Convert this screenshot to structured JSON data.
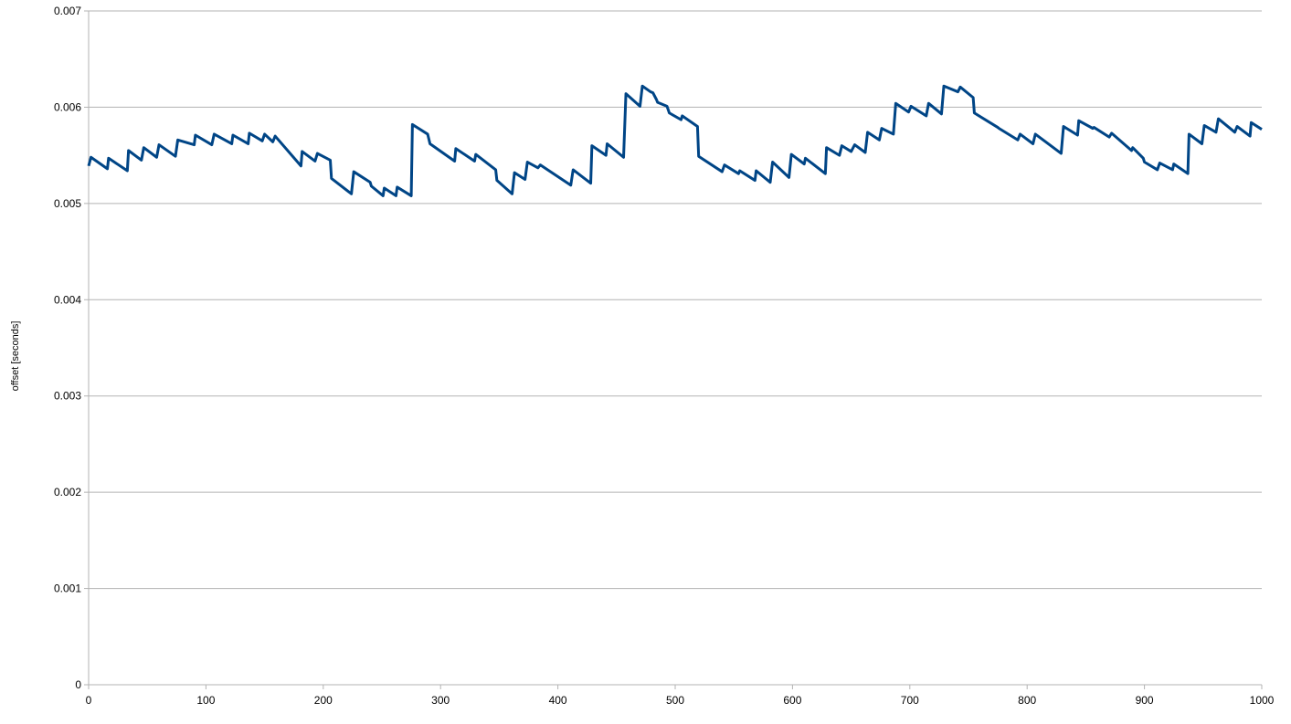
{
  "chart_data": {
    "type": "line",
    "y_label": "offset [seconds]",
    "x": [
      0,
      2,
      16,
      17,
      33,
      34,
      45,
      47,
      58,
      60,
      74,
      76,
      90,
      91,
      105,
      107,
      122,
      123,
      136,
      137,
      148,
      150,
      157,
      159,
      181,
      182,
      193,
      195,
      206,
      207,
      224,
      226,
      240,
      241,
      251,
      252,
      262,
      263,
      275,
      276,
      289,
      291,
      312,
      313,
      329,
      330,
      347,
      348,
      361,
      363,
      372,
      374,
      383,
      385,
      411,
      413,
      428,
      429,
      441,
      442,
      456,
      458,
      470,
      472,
      479,
      481,
      484,
      485,
      493,
      495,
      505,
      506,
      519,
      520,
      540,
      542,
      554,
      555,
      568,
      569,
      581,
      583,
      597,
      599,
      610,
      611,
      628,
      629,
      640,
      642,
      650,
      653,
      662,
      664,
      674,
      676,
      686,
      688,
      699,
      701,
      714,
      716,
      727,
      729,
      741,
      743,
      754,
      755,
      775,
      776,
      792,
      794,
      805,
      807,
      829,
      831,
      843,
      844,
      856,
      857,
      870,
      872,
      889,
      890,
      899,
      900,
      911,
      913,
      924,
      925,
      937,
      938,
      949,
      951,
      961,
      963,
      977,
      979,
      990,
      991,
      1000
    ],
    "series": [
      {
        "name": "offset",
        "color": "#004586",
        "values": [
          0.00539,
          0.00548,
          0.00536,
          0.00547,
          0.00534,
          0.00555,
          0.00545,
          0.00558,
          0.00548,
          0.00561,
          0.00549,
          0.00566,
          0.00561,
          0.00571,
          0.00561,
          0.00572,
          0.00562,
          0.00571,
          0.00562,
          0.00573,
          0.00565,
          0.00572,
          0.00564,
          0.0057,
          0.00539,
          0.00554,
          0.00544,
          0.00552,
          0.00545,
          0.00526,
          0.0051,
          0.00533,
          0.00522,
          0.00518,
          0.00508,
          0.00516,
          0.00508,
          0.00517,
          0.00508,
          0.00582,
          0.00572,
          0.00562,
          0.00544,
          0.00557,
          0.00544,
          0.00551,
          0.00535,
          0.00524,
          0.0051,
          0.00532,
          0.00525,
          0.00543,
          0.00537,
          0.0054,
          0.00519,
          0.00535,
          0.00521,
          0.0056,
          0.0055,
          0.00562,
          0.00548,
          0.00614,
          0.00601,
          0.00622,
          0.00616,
          0.00615,
          0.00608,
          0.00605,
          0.00601,
          0.00594,
          0.00587,
          0.00591,
          0.0058,
          0.00549,
          0.00533,
          0.0054,
          0.00531,
          0.00534,
          0.00524,
          0.00534,
          0.00522,
          0.00543,
          0.00527,
          0.00551,
          0.00541,
          0.00547,
          0.00531,
          0.00558,
          0.0055,
          0.0056,
          0.00554,
          0.00561,
          0.00553,
          0.00574,
          0.00566,
          0.00578,
          0.00572,
          0.00604,
          0.00595,
          0.00601,
          0.00591,
          0.00604,
          0.00593,
          0.00622,
          0.00616,
          0.00621,
          0.0061,
          0.00594,
          0.00579,
          0.00578,
          0.00566,
          0.00572,
          0.00562,
          0.00572,
          0.00552,
          0.0058,
          0.00571,
          0.00586,
          0.00578,
          0.00579,
          0.00569,
          0.00573,
          0.00555,
          0.00558,
          0.00547,
          0.00543,
          0.00535,
          0.00542,
          0.00535,
          0.00541,
          0.00531,
          0.00572,
          0.00562,
          0.00581,
          0.00574,
          0.00588,
          0.00574,
          0.0058,
          0.0057,
          0.00584,
          0.00577
        ]
      }
    ],
    "xlim": [
      0,
      1000
    ],
    "xticks": [
      0,
      100,
      200,
      300,
      400,
      500,
      600,
      700,
      800,
      900,
      1000
    ],
    "ylim": [
      0,
      0.007
    ],
    "yticks": [
      0,
      0.001,
      0.002,
      0.003,
      0.004,
      0.005,
      0.006,
      0.007
    ],
    "grid": true
  }
}
